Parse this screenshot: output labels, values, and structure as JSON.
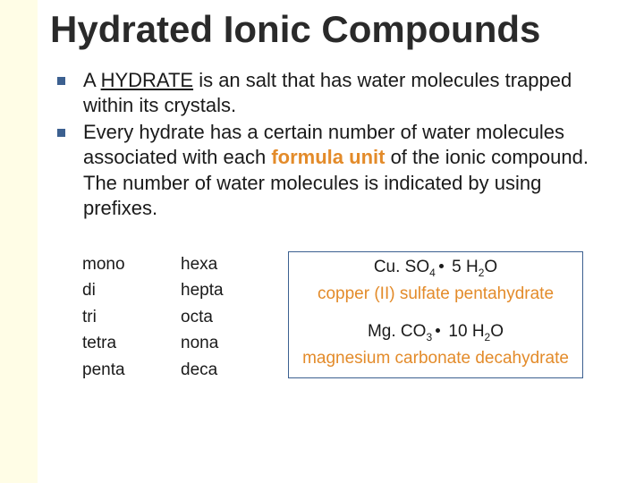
{
  "colors": {
    "sidebar_bg": "#fffde6",
    "text": "#1a1a1a",
    "bullet_marker": "#3c6090",
    "accent": "#e38b2a",
    "box_border": "#3c6090",
    "background": "#ffffff"
  },
  "title": "Hydrated Ionic Compounds",
  "bullets": [
    {
      "pre": "A ",
      "underlined": "HYDRATE",
      "post": " is an salt that has water molecules trapped within its crystals."
    },
    {
      "pre": "Every hydrate has a certain number of water molecules associated with each ",
      "accent": "formula unit",
      "post": " of the ionic compound.  The number of water molecules is indicated by using prefixes."
    }
  ],
  "prefixes": {
    "col1": [
      "mono",
      "di",
      "tri",
      "tetra",
      "penta"
    ],
    "col2": [
      "hexa",
      "hepta",
      "octa",
      "nona",
      "deca"
    ]
  },
  "examples": [
    {
      "formula_left": "Cu. SO",
      "formula_left_sub": "4",
      "formula_right": " 5 H",
      "formula_right_sub": "2",
      "formula_tail": "O",
      "name": "copper (II) sulfate pentahydrate"
    },
    {
      "formula_left": "Mg. CO",
      "formula_left_sub": "3",
      "formula_right": " 10 H",
      "formula_right_sub": "2",
      "formula_tail": "O",
      "name": "magnesium carbonate decahydrate"
    }
  ],
  "typography": {
    "title_fontsize": 42,
    "body_fontsize": 22,
    "prefix_fontsize": 19,
    "example_fontsize": 19
  }
}
